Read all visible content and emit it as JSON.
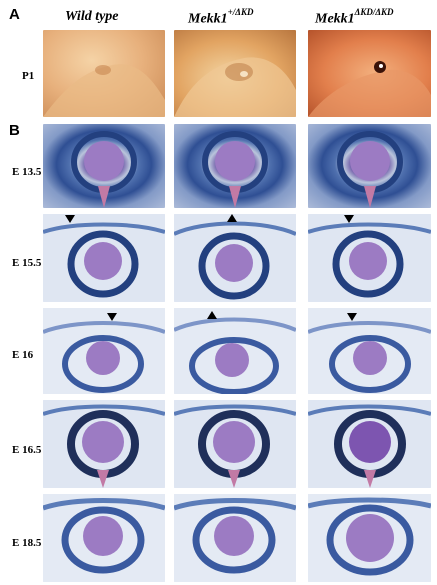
{
  "panels": {
    "A": "A",
    "B": "B"
  },
  "columns": [
    {
      "base": "Wild type",
      "sup": ""
    },
    {
      "base": "Mekk1",
      "sup": "+/ΔKD"
    },
    {
      "base": "Mekk1",
      "sup": "ΔKD/ΔKD"
    }
  ],
  "rows_a": [
    "P1"
  ],
  "rows_b": [
    "E 13.5",
    "E 15.5",
    "E 16",
    "E 16.5",
    "E 18.5"
  ],
  "colors": {
    "stain_blue": "#2f4f94",
    "stain_purple": "#8f6fb6",
    "skin": "#e3a66a",
    "arrowhead": "#000000"
  }
}
